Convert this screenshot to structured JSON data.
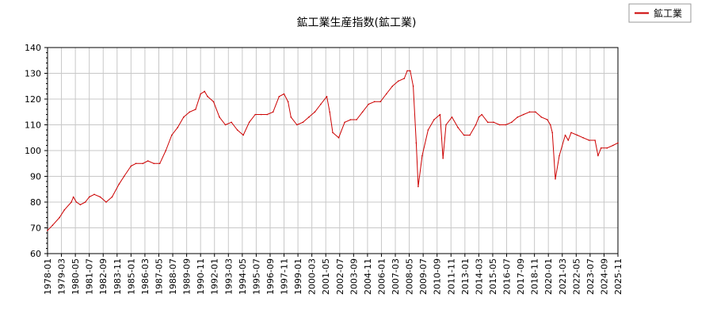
{
  "chart_data": {
    "type": "line",
    "title": "鉱工業生産指数(鉱工業)",
    "xlabel": "",
    "ylabel": "",
    "ylim": [
      60,
      140
    ],
    "y_ticks": [
      60,
      70,
      80,
      90,
      100,
      110,
      120,
      130,
      140
    ],
    "x_range": [
      "1978-01",
      "2025-11"
    ],
    "x_ticks": [
      "1978-01",
      "1979-03",
      "1980-05",
      "1981-07",
      "1982-09",
      "1983-11",
      "1985-01",
      "1986-03",
      "1987-05",
      "1988-07",
      "1989-09",
      "1990-11",
      "1992-01",
      "1993-03",
      "1994-05",
      "1995-07",
      "1996-09",
      "1997-11",
      "1999-01",
      "2000-03",
      "2001-05",
      "2002-07",
      "2003-09",
      "2004-11",
      "2006-01",
      "2007-03",
      "2008-05",
      "2009-07",
      "2010-09",
      "2011-11",
      "2013-01",
      "2014-03",
      "2015-05",
      "2016-07",
      "2017-09",
      "2018-11",
      "2020-01",
      "2021-03",
      "2022-05",
      "2023-07",
      "2024-09",
      "2025-11"
    ],
    "grid": true,
    "legend_position": "top-right",
    "series": [
      {
        "name": "鉱工業",
        "color": "#cc0000",
        "x": [
          "1978-01",
          "1978-06",
          "1979-01",
          "1979-06",
          "1980-01",
          "1980-03",
          "1980-06",
          "1980-10",
          "1981-03",
          "1981-07",
          "1981-12",
          "1982-06",
          "1982-12",
          "1983-06",
          "1984-01",
          "1984-06",
          "1985-01",
          "1985-06",
          "1986-01",
          "1986-06",
          "1986-12",
          "1987-06",
          "1987-12",
          "1988-06",
          "1988-12",
          "1989-06",
          "1989-12",
          "1990-06",
          "1990-11",
          "1991-03",
          "1991-06",
          "1991-12",
          "1992-06",
          "1992-12",
          "1993-06",
          "1993-12",
          "1994-06",
          "1994-12",
          "1995-06",
          "1995-12",
          "1996-06",
          "1996-12",
          "1997-06",
          "1997-11",
          "1998-03",
          "1998-06",
          "1998-12",
          "1999-06",
          "1999-12",
          "2000-06",
          "2000-12",
          "2001-06",
          "2001-09",
          "2001-12",
          "2002-06",
          "2002-12",
          "2003-06",
          "2003-12",
          "2004-06",
          "2004-12",
          "2005-06",
          "2005-12",
          "2006-06",
          "2006-12",
          "2007-06",
          "2007-12",
          "2008-03",
          "2008-06",
          "2008-09",
          "2008-12",
          "2009-02",
          "2009-06",
          "2009-12",
          "2010-06",
          "2010-12",
          "2011-03",
          "2011-06",
          "2011-12",
          "2012-06",
          "2012-12",
          "2013-06",
          "2013-12",
          "2014-03",
          "2014-06",
          "2014-12",
          "2015-06",
          "2015-12",
          "2016-06",
          "2016-12",
          "2017-06",
          "2017-12",
          "2018-06",
          "2018-12",
          "2019-06",
          "2019-12",
          "2020-03",
          "2020-05",
          "2020-08",
          "2020-12",
          "2021-06",
          "2021-09",
          "2021-12",
          "2022-06",
          "2022-12",
          "2023-06",
          "2023-12",
          "2024-03",
          "2024-06",
          "2024-12",
          "2025-06",
          "2025-11"
        ],
        "values": [
          69,
          71,
          74,
          77,
          80,
          82,
          80,
          79,
          80,
          82,
          83,
          82,
          80,
          82,
          87,
          90,
          94,
          95,
          95,
          96,
          95,
          95,
          100,
          106,
          109,
          113,
          115,
          116,
          122,
          123,
          121,
          119,
          113,
          110,
          111,
          108,
          106,
          111,
          114,
          114,
          114,
          115,
          121,
          122,
          119,
          113,
          110,
          111,
          113,
          115,
          118,
          121,
          115,
          107,
          105,
          111,
          112,
          112,
          115,
          118,
          119,
          119,
          122,
          125,
          127,
          128,
          131,
          131,
          125,
          103,
          86,
          98,
          108,
          112,
          114,
          97,
          110,
          113,
          109,
          106,
          106,
          110,
          113,
          114,
          111,
          111,
          110,
          110,
          111,
          113,
          114,
          115,
          115,
          113,
          112,
          110,
          107,
          89,
          98,
          106,
          104,
          107,
          106,
          105,
          104,
          104,
          98,
          101,
          101,
          102,
          103
        ]
      }
    ]
  }
}
